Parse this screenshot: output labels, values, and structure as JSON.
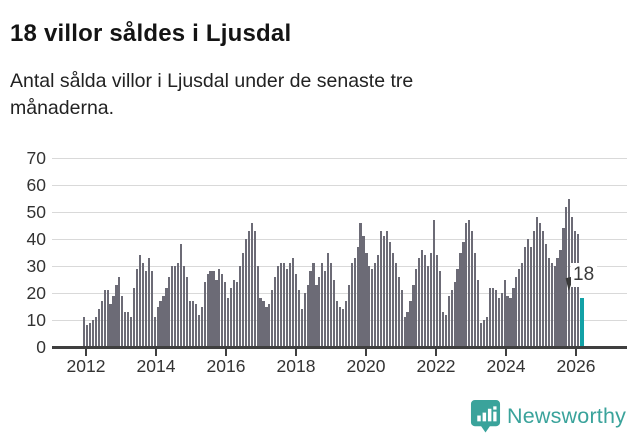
{
  "header": {
    "title": "18 villor såldes i Ljusdal",
    "subtitle": "Antal sålda villor i Ljusdal under de senaste tre\nmånaderna."
  },
  "chart_data": {
    "type": "bar",
    "title": "Antal sålda villor i Ljusdal under de senaste tre månaderna",
    "x_start_month": "2012-01",
    "x_end_month": "2026-02",
    "x_tick_labels": [
      "2012",
      "2014",
      "2016",
      "2018",
      "2020",
      "2022",
      "2024",
      "2026"
    ],
    "y_tick_labels": [
      "0",
      "10",
      "20",
      "30",
      "40",
      "50",
      "60",
      "70"
    ],
    "y_ticks": [
      0,
      10,
      20,
      30,
      40,
      50,
      60,
      70
    ],
    "ylim": [
      0,
      70
    ],
    "grid": true,
    "legend": "none",
    "bar_color": "#6c6b76",
    "highlight_color": "#12a1a6",
    "values": [
      11,
      8,
      9,
      10,
      11,
      14,
      17,
      21,
      21,
      16,
      19,
      23,
      26,
      19,
      13,
      13,
      11,
      22,
      29,
      34,
      31,
      28,
      33,
      28,
      11,
      15,
      17,
      19,
      22,
      26,
      30,
      30,
      31,
      38,
      30,
      26,
      17,
      17,
      16,
      12,
      15,
      24,
      27,
      28,
      28,
      25,
      29,
      27,
      24,
      18,
      22,
      25,
      24,
      30,
      35,
      40,
      43,
      46,
      43,
      30,
      18,
      17,
      15,
      16,
      21,
      26,
      30,
      31,
      31,
      29,
      31,
      33,
      27,
      21,
      14,
      20,
      23,
      28,
      31,
      23,
      26,
      31,
      28,
      35,
      31,
      25,
      17,
      15,
      14,
      17,
      23,
      31,
      33,
      37,
      46,
      41,
      35,
      30,
      29,
      31,
      34,
      43,
      41,
      43,
      39,
      35,
      31,
      26,
      21,
      11,
      13,
      17,
      23,
      29,
      33,
      36,
      34,
      30,
      35,
      47,
      34,
      28,
      13,
      12,
      19,
      21,
      24,
      29,
      35,
      39,
      46,
      47,
      43,
      35,
      25,
      9,
      10,
      11,
      22,
      22,
      21,
      18,
      20,
      25,
      19,
      18,
      22,
      26,
      29,
      31,
      37,
      40,
      37,
      43,
      48,
      46,
      43,
      38,
      33,
      31,
      30,
      33,
      36,
      44,
      52,
      55,
      48,
      43,
      42,
      18
    ],
    "highlight": {
      "index": 169,
      "value": 18,
      "label": "18"
    }
  },
  "footer": {
    "brand": "Newsworthy"
  },
  "colors": {
    "bar_gray": "#6c6b76",
    "accent_teal": "#12a1a6",
    "logo_teal": "#3aa39b",
    "gridline": "#d9d9d9",
    "axis": "#3f3f3f"
  }
}
